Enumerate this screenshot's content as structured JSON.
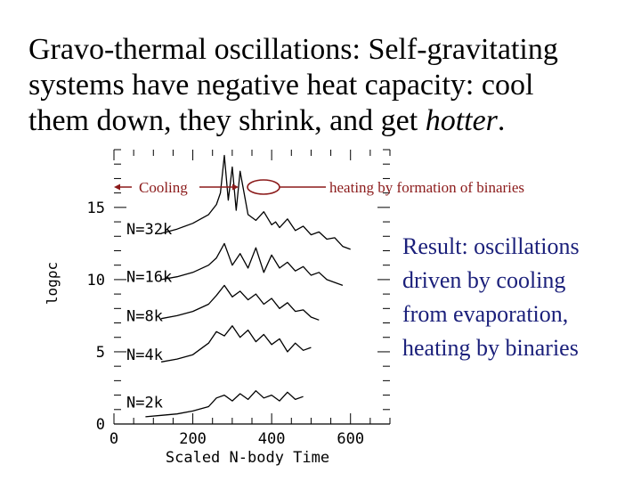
{
  "title": {
    "lines": [
      "Gravo-thermal oscillations:  Self-gravitating",
      "systems have negative heat capacity: cool",
      "them down, they shrink, and get "
    ],
    "emphasis": "hotter",
    "end": "."
  },
  "annotations": {
    "cooling": "Cooling",
    "heating": "heating by formation of binaries",
    "color": "#8b1a1a"
  },
  "note": {
    "lines": [
      "Result: oscillations",
      "driven by cooling",
      "from evaporation,",
      "heating by binaries"
    ],
    "color": "#1a1f7a"
  },
  "chart_data": {
    "type": "line",
    "xlabel": "Scaled N-body Time",
    "ylabel": "logρc",
    "xlim": [
      0,
      700
    ],
    "ylim": [
      0,
      19
    ],
    "x_ticks": [
      "0",
      "200",
      "400",
      "600"
    ],
    "y_ticks": [
      "0",
      "5",
      "10",
      "15"
    ],
    "grid": false,
    "series": [
      {
        "name": "N=2k",
        "label_y": 1.5,
        "x": [
          80,
          120,
          160,
          200,
          240,
          260,
          280,
          300,
          320,
          340,
          360,
          380,
          400,
          420,
          440,
          460,
          480
        ],
        "y": [
          0.5,
          0.6,
          0.7,
          0.9,
          1.2,
          1.8,
          2.0,
          1.6,
          2.1,
          1.7,
          2.3,
          1.8,
          2.0,
          1.6,
          2.2,
          1.7,
          1.9
        ]
      },
      {
        "name": "N=4k",
        "label_y": 4.8,
        "x": [
          120,
          160,
          200,
          240,
          260,
          280,
          300,
          320,
          340,
          360,
          380,
          400,
          420,
          440,
          460,
          480,
          500
        ],
        "y": [
          4.3,
          4.5,
          4.8,
          5.6,
          6.4,
          6.1,
          6.8,
          6.0,
          6.5,
          5.7,
          6.2,
          5.5,
          5.9,
          5.0,
          5.6,
          5.1,
          5.3
        ]
      },
      {
        "name": "N=8k",
        "label_y": 7.5,
        "x": [
          120,
          160,
          200,
          240,
          260,
          280,
          300,
          320,
          340,
          360,
          380,
          400,
          420,
          440,
          460,
          480,
          500,
          520
        ],
        "y": [
          7.3,
          7.5,
          7.8,
          8.3,
          8.9,
          9.6,
          8.8,
          9.2,
          8.6,
          9.0,
          8.3,
          8.7,
          8.0,
          8.4,
          7.8,
          7.9,
          7.4,
          7.2
        ]
      },
      {
        "name": "N=16k",
        "label_y": 10.2,
        "x": [
          120,
          160,
          200,
          240,
          260,
          280,
          300,
          320,
          340,
          360,
          380,
          400,
          420,
          440,
          460,
          480,
          500,
          520,
          540,
          560,
          580
        ],
        "y": [
          10.0,
          10.2,
          10.5,
          11.0,
          11.5,
          12.5,
          11.0,
          11.8,
          10.8,
          12.2,
          10.5,
          11.7,
          10.8,
          11.2,
          10.6,
          10.9,
          10.3,
          10.5,
          10.0,
          9.8,
          9.6
        ]
      },
      {
        "name": "N=32k",
        "label_y": 13.5,
        "x": [
          120,
          160,
          200,
          240,
          260,
          270,
          280,
          290,
          300,
          310,
          320,
          340,
          360,
          380,
          400,
          410,
          420,
          440,
          460,
          480,
          500,
          520,
          540,
          560,
          580,
          600
        ],
        "y": [
          13.2,
          13.5,
          13.9,
          14.5,
          15.2,
          16.0,
          18.6,
          15.5,
          17.8,
          14.8,
          17.5,
          14.5,
          14.1,
          14.7,
          13.8,
          14.0,
          13.6,
          14.2,
          13.4,
          13.7,
          13.1,
          13.3,
          12.8,
          12.9,
          12.3,
          12.1
        ]
      }
    ]
  }
}
